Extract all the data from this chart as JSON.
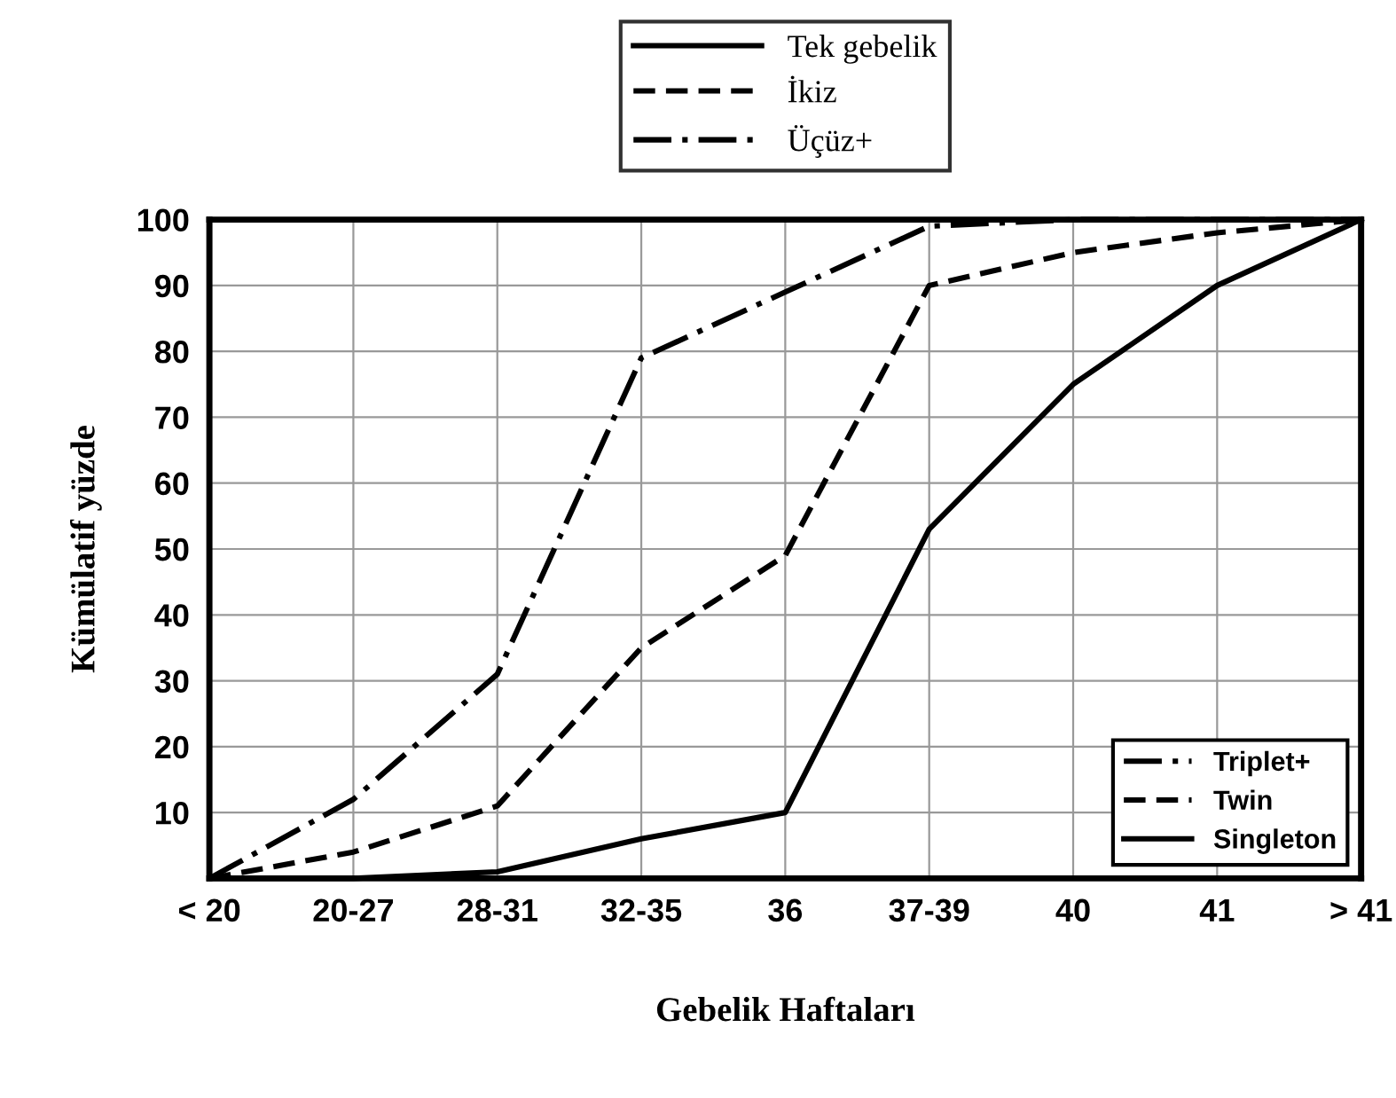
{
  "chart_data": {
    "type": "line",
    "xlabel": "Gebelik Haftaları",
    "ylabel": "Kümülatif yüzde",
    "categories": [
      "< 20",
      "20-27",
      "28-31",
      "32-35",
      "36",
      "37-39",
      "40",
      "41",
      "> 41"
    ],
    "series": [
      {
        "name": "Tek gebelik",
        "color": "#000000",
        "line_style": "solid",
        "values": [
          0,
          0,
          1,
          6,
          10,
          53,
          75,
          90,
          100
        ]
      },
      {
        "name": "İkiz",
        "color": "#000000",
        "line_style": "dashed",
        "values": [
          0,
          4,
          11,
          35,
          49,
          90,
          95,
          98,
          100
        ]
      },
      {
        "name": "Üçüz+",
        "color": "#000000",
        "line_style": "dashdot",
        "values": [
          0,
          12,
          31,
          79,
          89,
          99,
          100,
          100,
          100
        ]
      }
    ],
    "annotations": [
      "Triplet+",
      "Twin",
      "Singleton"
    ],
    "ylim": [
      0,
      100
    ],
    "yticks": [
      10,
      20,
      30,
      40,
      50,
      60,
      70,
      80,
      90,
      100
    ],
    "grid": true,
    "legend": "top",
    "marker": "none"
  }
}
